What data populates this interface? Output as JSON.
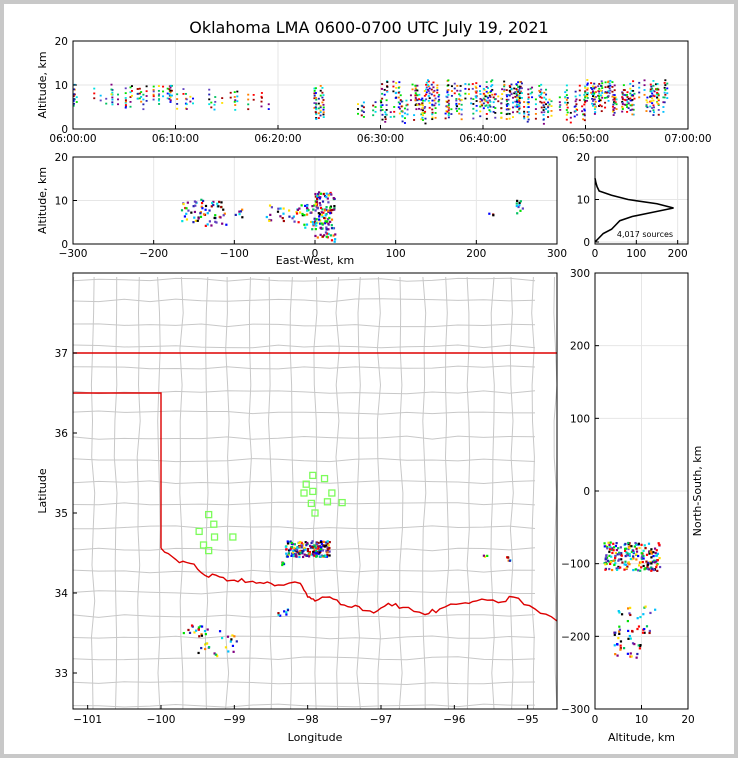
{
  "title": "Oklahoma LMA 0600-0700 UTC July 19, 2021",
  "colors": {
    "state_border": "#dd0000",
    "county_lines": "#c8c8c8",
    "stations": "#7cfc5a",
    "histogram": "#000000"
  },
  "chart_data": [
    {
      "id": "time_height",
      "type": "scatter",
      "xlabel": "",
      "ylabel": "Altitude, km",
      "x_ticks": [
        "06:00:00",
        "06:10:00",
        "06:20:00",
        "06:30:00",
        "06:40:00",
        "06:50:00",
        "07:00:00"
      ],
      "xlim_minutes": [
        0,
        60
      ],
      "ylim": [
        0,
        20
      ],
      "y_ticks": [
        0,
        10,
        20
      ],
      "clusters": [
        {
          "t": 0,
          "t2": 12,
          "alt": [
            4,
            10
          ],
          "n": 40
        },
        {
          "t": 12,
          "t2": 20,
          "alt": [
            4,
            9
          ],
          "n": 14
        },
        {
          "t": 23.5,
          "t2": 24.5,
          "alt": [
            2,
            10
          ],
          "n": 14
        },
        {
          "t": 26,
          "t2": 30,
          "alt": [
            2,
            6
          ],
          "n": 6
        },
        {
          "t": 30,
          "t2": 36,
          "alt": [
            1,
            11
          ],
          "n": 60
        },
        {
          "t": 36,
          "t2": 44,
          "alt": [
            2,
            11
          ],
          "n": 80
        },
        {
          "t": 44,
          "t2": 50,
          "alt": [
            1,
            10
          ],
          "n": 40
        },
        {
          "t": 50,
          "t2": 58,
          "alt": [
            3,
            11
          ],
          "n": 80
        }
      ]
    },
    {
      "id": "ew_alt",
      "type": "scatter",
      "xlabel": "East-West, km",
      "ylabel": "Altitude, km",
      "xlim": [
        -300,
        300
      ],
      "x_ticks": [
        -300,
        -200,
        -100,
        0,
        100,
        200,
        300
      ],
      "ylim": [
        0,
        20
      ],
      "y_ticks": [
        0,
        10,
        20
      ],
      "clusters": [
        {
          "x": [
            -165,
            -140
          ],
          "alt": [
            5,
            11
          ],
          "n": 30
        },
        {
          "x": [
            -140,
            -110
          ],
          "alt": [
            4,
            10
          ],
          "n": 35
        },
        {
          "x": [
            -100,
            -90
          ],
          "alt": [
            6,
            8
          ],
          "n": 6
        },
        {
          "x": [
            -60,
            -20
          ],
          "alt": [
            5,
            9
          ],
          "n": 25
        },
        {
          "x": [
            -20,
            0
          ],
          "alt": [
            3,
            9
          ],
          "n": 30
        },
        {
          "x": [
            0,
            25
          ],
          "alt": [
            0.5,
            12
          ],
          "n": 120
        },
        {
          "x": [
            215,
            225
          ],
          "alt": [
            6,
            7
          ],
          "n": 3
        },
        {
          "x": [
            250,
            258
          ],
          "alt": [
            7,
            11
          ],
          "n": 10
        }
      ]
    },
    {
      "id": "alt_histogram",
      "type": "line",
      "xlim": [
        0,
        225
      ],
      "x_ticks": [
        0,
        100,
        200
      ],
      "ylim": [
        0,
        20
      ],
      "y_ticks": [
        0,
        10,
        20
      ],
      "annotation": "4,017 sources",
      "profile": [
        [
          0,
          0
        ],
        [
          10,
          1
        ],
        [
          20,
          2
        ],
        [
          40,
          3
        ],
        [
          50,
          4
        ],
        [
          60,
          5
        ],
        [
          90,
          6
        ],
        [
          140,
          7
        ],
        [
          190,
          8
        ],
        [
          150,
          9
        ],
        [
          80,
          10
        ],
        [
          40,
          11
        ],
        [
          10,
          12
        ],
        [
          5,
          13
        ],
        [
          2,
          14
        ],
        [
          0,
          15
        ]
      ]
    },
    {
      "id": "plan_view",
      "type": "scatter",
      "xlabel": "Longitude",
      "ylabel": "Latitude",
      "xlim": [
        -101.2,
        -94.6
      ],
      "x_ticks": [
        -101,
        -100,
        -99,
        -98,
        -97,
        -96,
        -95
      ],
      "ylim": [
        32.55,
        38.0
      ],
      "y_ticks": [
        33,
        34,
        35,
        36,
        37
      ],
      "stations": [
        {
          "lon": -97.93,
          "lat": 35.47
        },
        {
          "lon": -97.77,
          "lat": 35.43
        },
        {
          "lon": -98.02,
          "lat": 35.36
        },
        {
          "lon": -98.05,
          "lat": 35.25
        },
        {
          "lon": -97.93,
          "lat": 35.27
        },
        {
          "lon": -97.67,
          "lat": 35.25
        },
        {
          "lon": -97.95,
          "lat": 35.12
        },
        {
          "lon": -97.73,
          "lat": 35.14
        },
        {
          "lon": -97.53,
          "lat": 35.13
        },
        {
          "lon": -97.9,
          "lat": 35.0
        },
        {
          "lon": -99.35,
          "lat": 34.98
        },
        {
          "lon": -99.28,
          "lat": 34.86
        },
        {
          "lon": -99.48,
          "lat": 34.77
        },
        {
          "lon": -99.27,
          "lat": 34.7
        },
        {
          "lon": -99.02,
          "lat": 34.7
        },
        {
          "lon": -99.42,
          "lat": 34.6
        },
        {
          "lon": -99.35,
          "lat": 34.53
        }
      ],
      "clusters": [
        {
          "lon": [
            -98.3,
            -97.7
          ],
          "lat": [
            34.45,
            34.65
          ],
          "n": 200
        },
        {
          "lon": [
            -98.35,
            -98.3
          ],
          "lat": [
            34.35,
            34.4
          ],
          "n": 6
        },
        {
          "lon": [
            -98.4,
            -98.2
          ],
          "lat": [
            33.7,
            33.8
          ],
          "n": 8
        },
        {
          "lon": [
            -99.7,
            -99.4
          ],
          "lat": [
            33.5,
            33.6
          ],
          "n": 12
        },
        {
          "lon": [
            -99.5,
            -98.95
          ],
          "lat": [
            33.2,
            33.55
          ],
          "n": 30
        },
        {
          "lon": [
            -95.6,
            -95.55
          ],
          "lat": [
            34.45,
            34.5
          ],
          "n": 3
        },
        {
          "lon": [
            -95.3,
            -95.2
          ],
          "lat": [
            34.4,
            34.45
          ],
          "n": 6
        }
      ]
    },
    {
      "id": "alt_ns",
      "type": "scatter",
      "xlabel": "Altitude, km",
      "ylabel": "North-South, km",
      "xlim": [
        0,
        20
      ],
      "x_ticks": [
        0,
        10,
        20
      ],
      "ylim": [
        -300,
        300
      ],
      "y_ticks": [
        -300,
        -200,
        -100,
        0,
        100,
        200,
        300
      ],
      "clusters": [
        {
          "alt": [
            2,
            14
          ],
          "ns": [
            -110,
            -70
          ],
          "n": 200
        },
        {
          "alt": [
            5,
            13
          ],
          "ns": [
            -180,
            -155
          ],
          "n": 15
        },
        {
          "alt": [
            4,
            12
          ],
          "ns": [
            -200,
            -185
          ],
          "n": 20
        },
        {
          "alt": [
            4,
            10
          ],
          "ns": [
            -230,
            -200
          ],
          "n": 25
        }
      ]
    }
  ]
}
